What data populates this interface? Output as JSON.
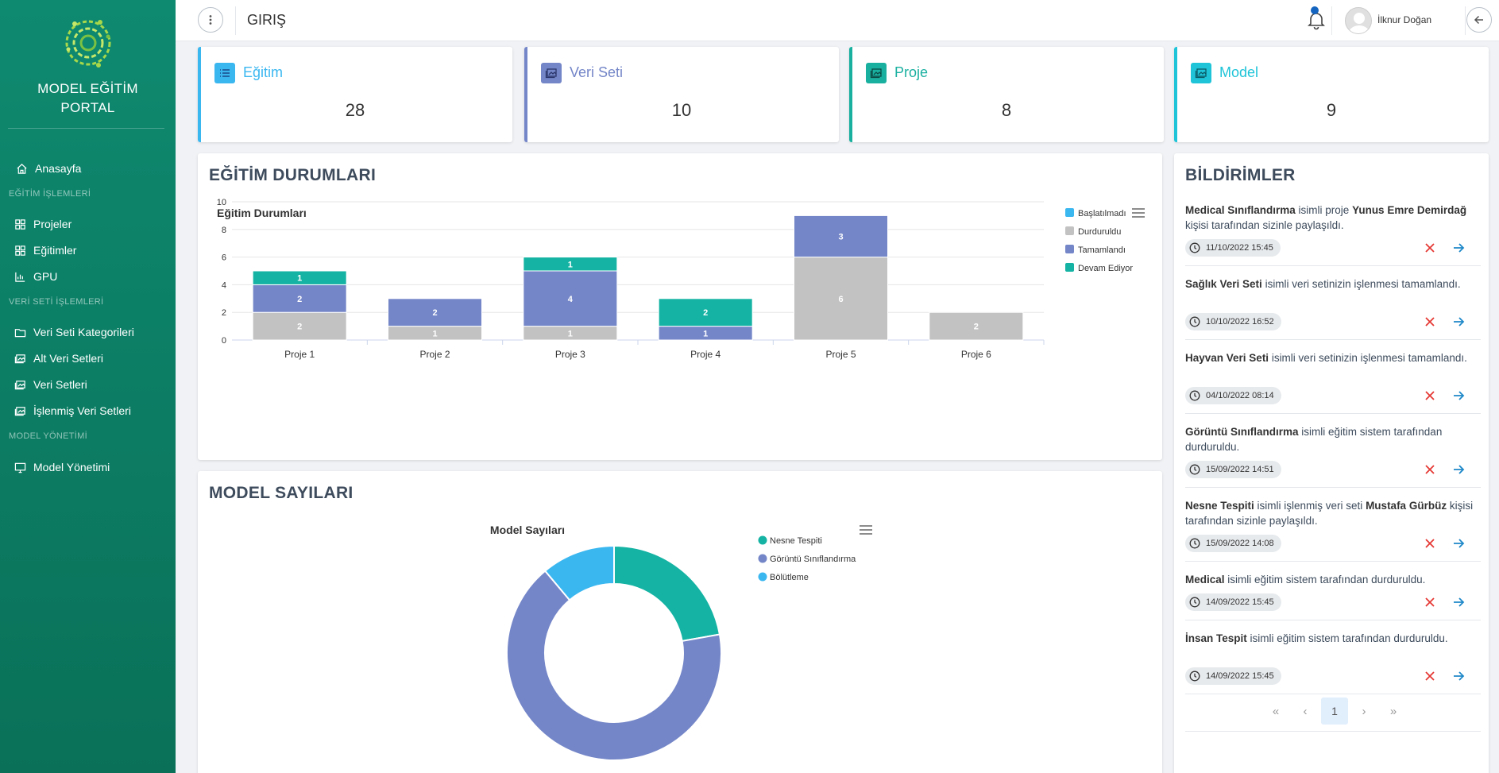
{
  "sidebar": {
    "brand_line1": "MODEL EĞİTİM",
    "brand_line2": "PORTAL",
    "home": "Anasayfa",
    "section1": "EĞİTİM İŞLEMLERİ",
    "projects": "Projeler",
    "trainings": "Eğitimler",
    "gpu": "GPU",
    "section2": "VERİ SETİ İŞLEMLERİ",
    "dataset_categories": "Veri Seti Kategorileri",
    "sub_datasets": "Alt Veri Setleri",
    "datasets": "Veri Setleri",
    "processed_datasets": "İşlenmiş Veri Setleri",
    "section3": "MODEL YÖNETİMİ",
    "model_management": "Model Yönetimi"
  },
  "topbar": {
    "title": "GIRIŞ",
    "user_name": "İlknur Doğan"
  },
  "stats": [
    {
      "label": "Eğitim",
      "value": "28",
      "color": "#3bb7f0",
      "icon": "list-icon"
    },
    {
      "label": "Veri Seti",
      "value": "10",
      "color": "#7486c8",
      "icon": "image-icon"
    },
    {
      "label": "Proje",
      "value": "8",
      "color": "#1ab0a0",
      "icon": "image-icon"
    },
    {
      "label": "Model",
      "value": "9",
      "color": "#1fc4d8",
      "icon": "image-icon"
    }
  ],
  "training_panel": {
    "title": "EĞİTİM DURUMLARI"
  },
  "model_panel": {
    "title": "MODEL SAYILARI"
  },
  "notifications_panel": {
    "title": "BİLDİRİMLER"
  },
  "chart_data": [
    {
      "type": "bar",
      "stacked": true,
      "title": "Eğitim Durumları",
      "categories": [
        "Proje 1",
        "Proje 2",
        "Proje 3",
        "Proje 4",
        "Proje 5",
        "Proje 6"
      ],
      "y_ticks": [
        0,
        2,
        4,
        6,
        8,
        10
      ],
      "ylim": [
        0,
        10
      ],
      "legend_position": "right",
      "series": [
        {
          "name": "Başlatılmadı",
          "color": "#3bb7f0",
          "values": [
            0,
            0,
            0,
            0,
            0,
            0
          ]
        },
        {
          "name": "Durduruldu",
          "color": "#c2c2c2",
          "values": [
            2,
            1,
            1,
            0,
            6,
            2
          ]
        },
        {
          "name": "Tamamlandı",
          "color": "#7486c8",
          "values": [
            2,
            2,
            4,
            1,
            3,
            0
          ]
        },
        {
          "name": "Devam Ediyor",
          "color": "#14b3a3",
          "values": [
            1,
            0,
            1,
            2,
            0,
            0
          ]
        }
      ]
    },
    {
      "type": "pie",
      "donut": true,
      "title": "Model Sayıları",
      "legend_position": "right",
      "slices": [
        {
          "name": "Nesne Tespiti",
          "value": 2,
          "color": "#14b3a3"
        },
        {
          "name": "Görüntü Sınıflandırma",
          "value": 6,
          "color": "#7486c8"
        },
        {
          "name": "Bölütleme",
          "value": 1,
          "color": "#3bb7f0"
        }
      ]
    }
  ],
  "notifications": [
    {
      "parts": [
        {
          "b": "Medical Sınıflandırma"
        },
        {
          "t": " isimli proje "
        },
        {
          "b": "Yunus Emre Demirdağ"
        },
        {
          "t": " kişisi tarafından sizinle paylaşıldı."
        }
      ],
      "time": "11/10/2022 15:45"
    },
    {
      "parts": [
        {
          "b": "Sağlık Veri Seti"
        },
        {
          "t": " isimli veri setinizin işlenmesi tamamlandı."
        }
      ],
      "time": "10/10/2022 16:52"
    },
    {
      "parts": [
        {
          "b": "Hayvan Veri Seti"
        },
        {
          "t": " isimli veri setinizin işlenmesi tamamlandı."
        }
      ],
      "time": "04/10/2022 08:14"
    },
    {
      "parts": [
        {
          "b": "Görüntü Sınıflandırma"
        },
        {
          "t": " isimli eğitim sistem tarafından durduruldu."
        }
      ],
      "time": "15/09/2022 14:51"
    },
    {
      "parts": [
        {
          "b": "Nesne Tespiti"
        },
        {
          "t": " isimli işlenmiş veri seti "
        },
        {
          "b": "Mustafa Gürbüz"
        },
        {
          "t": " kişisi tarafından sizinle paylaşıldı."
        }
      ],
      "time": "15/09/2022 14:08"
    },
    {
      "parts": [
        {
          "b": "Medical"
        },
        {
          "t": " isimli eğitim sistem tarafından durduruldu."
        }
      ],
      "time": "14/09/2022 15:45"
    },
    {
      "parts": [
        {
          "b": "İnsan Tespit"
        },
        {
          "t": " isimli eğitim sistem tarafından durduruldu."
        }
      ],
      "time": "14/09/2022 15:45"
    }
  ],
  "pagination": {
    "first": "«",
    "prev": "‹",
    "current": "1",
    "next": "›",
    "last": "»"
  }
}
